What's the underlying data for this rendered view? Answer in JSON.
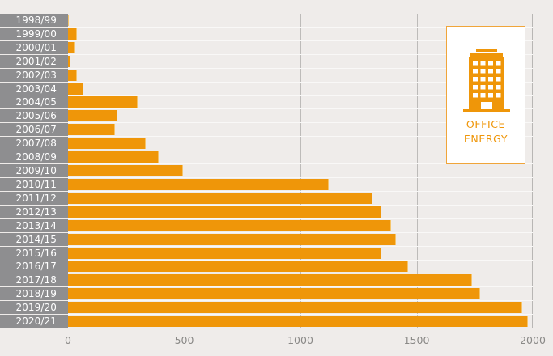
{
  "chart_data": {
    "type": "bar",
    "orientation": "horizontal",
    "title": "",
    "xlabel": "",
    "ylabel": "",
    "xlim": [
      0,
      2000
    ],
    "grid": true,
    "categories": [
      "1998/99",
      "1999/00",
      "2000/01",
      "2001/02",
      "2002/03",
      "2003/04",
      "2004/05",
      "2005/06",
      "2006/07",
      "2007/08",
      "2008/09",
      "2009/10",
      "2010/11",
      "2011/12",
      "2012/13",
      "2013/14",
      "2014/15",
      "2015/16",
      "2016/17",
      "2017/18",
      "2018/19",
      "2019/20",
      "2020/21"
    ],
    "values": [
      5,
      37,
      32,
      10,
      40,
      65,
      298,
      212,
      202,
      334,
      390,
      494,
      1122,
      1310,
      1348,
      1390,
      1410,
      1348,
      1463,
      1740,
      1775,
      1955,
      1980
    ],
    "x_ticks": [
      "0",
      "500",
      "1000",
      "1500",
      "2000"
    ],
    "x_tick_values": [
      0,
      500,
      1000,
      1500,
      2000
    ],
    "legend": {
      "icon": "office-building-icon",
      "label_line1": "OFFICE",
      "label_line2": "ENERGY",
      "position": "top-right"
    },
    "colors": {
      "bar": "#ef9609",
      "label_bg": "#8e8e90",
      "background": "#efecea"
    }
  }
}
